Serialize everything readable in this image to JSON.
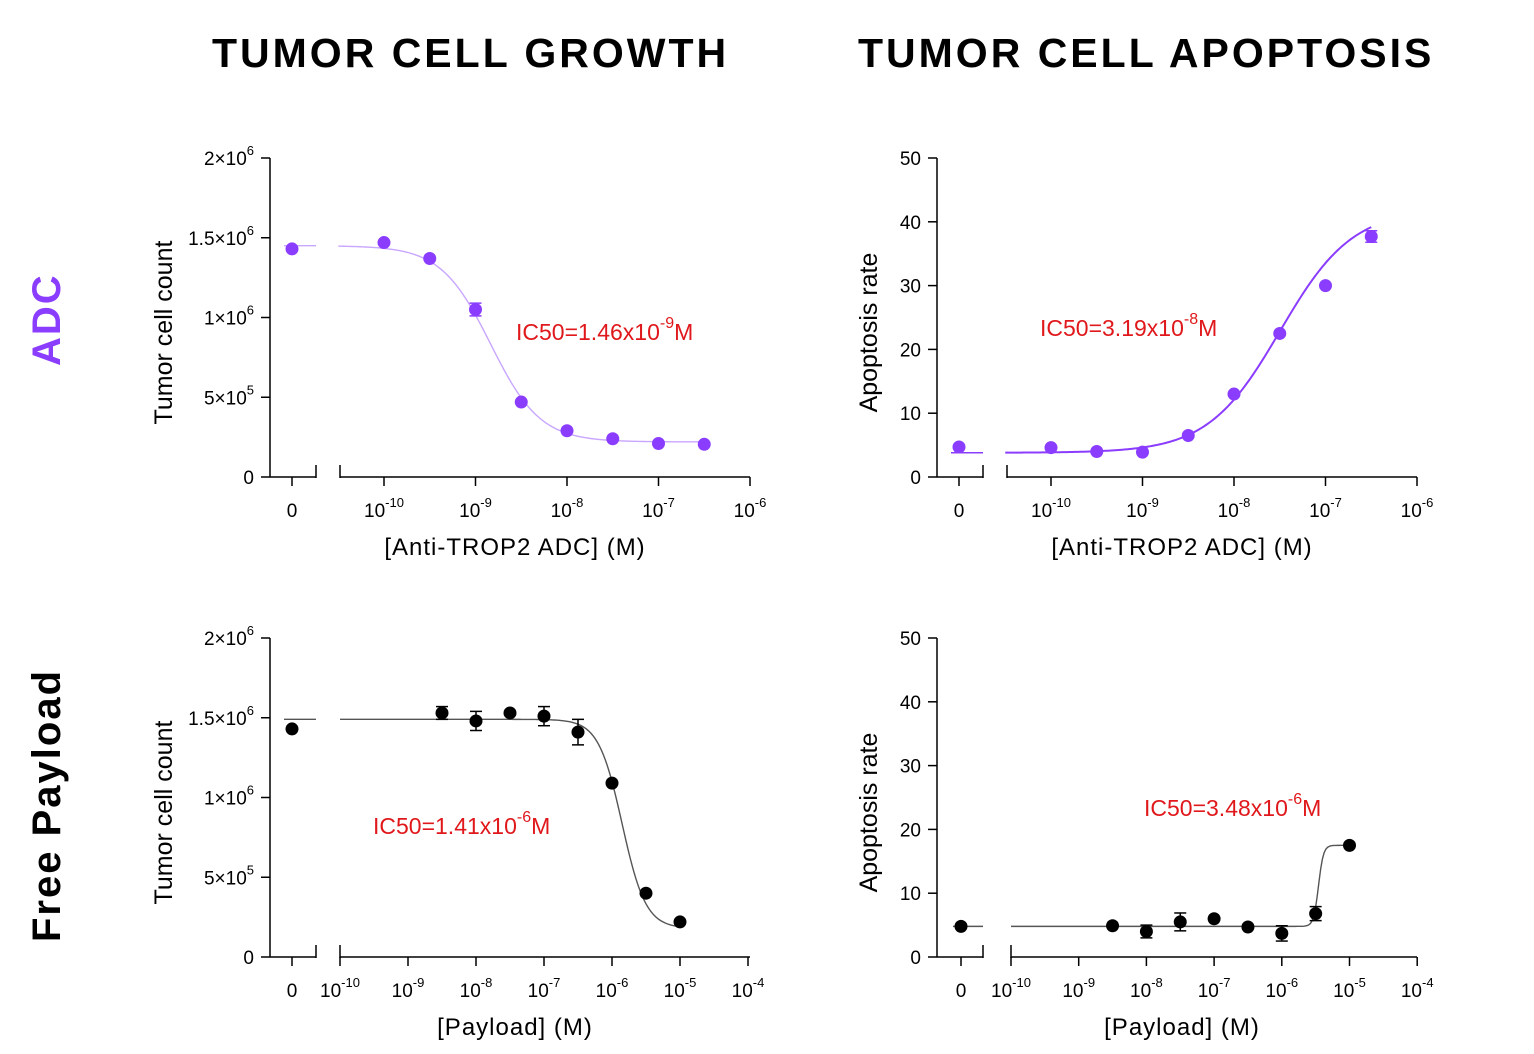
{
  "column_titles": [
    "TUMOR CELL GROWTH",
    "TUMOR CELL APOPTOSIS"
  ],
  "row_labels": [
    {
      "text": "ADC",
      "color": "#8b3dff"
    },
    {
      "text": "Free Payload",
      "color": "#000000"
    }
  ],
  "colors": {
    "adc": "#8b3dff",
    "payload": "#000000",
    "ic50": "#e0181b",
    "axis": "#000000"
  },
  "chart_data": [
    {
      "type": "scatter",
      "panel": "ADC growth",
      "ylabel": "Tumor cell count",
      "xlabel": "[Anti-TROP2 ADC] (M)",
      "ylim": [
        0,
        2000000
      ],
      "y_ticks": [
        {
          "value": 0,
          "base": "0",
          "exp": ""
        },
        {
          "value": 500000,
          "base": "5×10",
          "exp": "5"
        },
        {
          "value": 1000000,
          "base": "1×10",
          "exp": "6"
        },
        {
          "value": 1500000,
          "base": "1.5×10",
          "exp": "6"
        },
        {
          "value": 2000000,
          "base": "2×10",
          "exp": "6"
        }
      ],
      "xlim_log": [
        -10.5,
        -6
      ],
      "x_ticks": [
        -10,
        -9,
        -8,
        -7,
        -6
      ],
      "zero_label": "0",
      "color_key": "adc",
      "zero_point": {
        "y": 1430000,
        "err": 0
      },
      "points": [
        {
          "log_x": -10,
          "y": 1470000,
          "err": 0
        },
        {
          "log_x": -9.5,
          "y": 1370000,
          "err": 0
        },
        {
          "log_x": -9,
          "y": 1050000,
          "err": 40000
        },
        {
          "log_x": -8.5,
          "y": 470000,
          "err": 0
        },
        {
          "log_x": -8,
          "y": 290000,
          "err": 0
        },
        {
          "log_x": -7.5,
          "y": 240000,
          "err": 0
        },
        {
          "log_x": -7,
          "y": 210000,
          "err": 0
        },
        {
          "log_x": -6.5,
          "y": 205000,
          "err": 0
        }
      ],
      "fit": {
        "bottom": 220000,
        "top": 1450000,
        "log_ic50": -8.836,
        "hill": -1.6,
        "from": -10.5,
        "to": -6.5
      },
      "ic50": {
        "text": "IC50=1.46x10",
        "exp": "-9",
        "unit": "M"
      }
    },
    {
      "type": "scatter",
      "panel": "ADC apoptosis",
      "ylabel": "Apoptosis rate",
      "xlabel": "[Anti-TROP2 ADC] (M)",
      "ylim": [
        0,
        50
      ],
      "y_ticks": [
        {
          "value": 0,
          "base": "0",
          "exp": ""
        },
        {
          "value": 10,
          "base": "10",
          "exp": ""
        },
        {
          "value": 20,
          "base": "20",
          "exp": ""
        },
        {
          "value": 30,
          "base": "30",
          "exp": ""
        },
        {
          "value": 40,
          "base": "40",
          "exp": ""
        },
        {
          "value": 50,
          "base": "50",
          "exp": ""
        }
      ],
      "xlim_log": [
        -10.5,
        -6
      ],
      "x_ticks": [
        -10,
        -9,
        -8,
        -7,
        -6
      ],
      "zero_label": "0",
      "color_key": "adc",
      "zero_point": {
        "y": 4.7,
        "err": 0
      },
      "points": [
        {
          "log_x": -10,
          "y": 4.6,
          "err": 0
        },
        {
          "log_x": -9.5,
          "y": 4.0,
          "err": 0
        },
        {
          "log_x": -9,
          "y": 3.9,
          "err": 0
        },
        {
          "log_x": -8.5,
          "y": 6.5,
          "err": 0
        },
        {
          "log_x": -8,
          "y": 13.0,
          "err": 0
        },
        {
          "log_x": -7.5,
          "y": 22.5,
          "err": 0
        },
        {
          "log_x": -7,
          "y": 30.0,
          "err": 0
        },
        {
          "log_x": -6.5,
          "y": 37.7,
          "err": 0.9
        }
      ],
      "fit": {
        "bottom": 3.8,
        "top": 42.0,
        "log_ic50": -7.496,
        "hill": 1.1,
        "from": -10.5,
        "to": -6.5
      },
      "ic50": {
        "text": "IC50=3.19x10",
        "exp": "-8",
        "unit": "M"
      }
    },
    {
      "type": "scatter",
      "panel": "Payload growth",
      "ylabel": "Tumor cell count",
      "xlabel": "[Payload] (M)",
      "ylim": [
        0,
        2000000
      ],
      "y_ticks": [
        {
          "value": 0,
          "base": "0",
          "exp": ""
        },
        {
          "value": 500000,
          "base": "5×10",
          "exp": "5"
        },
        {
          "value": 1000000,
          "base": "1×10",
          "exp": "6"
        },
        {
          "value": 1500000,
          "base": "1.5×10",
          "exp": "6"
        },
        {
          "value": 2000000,
          "base": "2×10",
          "exp": "6"
        }
      ],
      "xlim_log": [
        -10,
        -4
      ],
      "x_ticks": [
        -10,
        -9,
        -8,
        -7,
        -6,
        -5,
        -4
      ],
      "zero_label": "0",
      "color_key": "payload",
      "zero_point": {
        "y": 1430000,
        "err": 0
      },
      "points": [
        {
          "log_x": -8.5,
          "y": 1530000,
          "err": 40000
        },
        {
          "log_x": -8,
          "y": 1480000,
          "err": 60000
        },
        {
          "log_x": -7.5,
          "y": 1530000,
          "err": 0
        },
        {
          "log_x": -7,
          "y": 1510000,
          "err": 60000
        },
        {
          "log_x": -6.5,
          "y": 1410000,
          "err": 80000
        },
        {
          "log_x": -6,
          "y": 1090000,
          "err": 0
        },
        {
          "log_x": -5.5,
          "y": 400000,
          "err": 0
        },
        {
          "log_x": -5,
          "y": 220000,
          "err": 0
        }
      ],
      "fit": {
        "bottom": 180000,
        "top": 1490000,
        "log_ic50": -5.851,
        "hill": -2.5,
        "from": -10,
        "to": -5
      },
      "ic50": {
        "text": "IC50=1.41x10",
        "exp": "-6",
        "unit": "M"
      }
    },
    {
      "type": "scatter",
      "panel": "Payload apoptosis",
      "ylabel": "Apoptosis rate",
      "xlabel": "[Payload] (M)",
      "ylim": [
        0,
        50
      ],
      "y_ticks": [
        {
          "value": 0,
          "base": "0",
          "exp": ""
        },
        {
          "value": 10,
          "base": "10",
          "exp": ""
        },
        {
          "value": 20,
          "base": "20",
          "exp": ""
        },
        {
          "value": 30,
          "base": "30",
          "exp": ""
        },
        {
          "value": 40,
          "base": "40",
          "exp": ""
        },
        {
          "value": 50,
          "base": "50",
          "exp": ""
        }
      ],
      "xlim_log": [
        -10,
        -4
      ],
      "x_ticks": [
        -10,
        -9,
        -8,
        -7,
        -6,
        -5,
        -4
      ],
      "zero_label": "0",
      "color_key": "payload",
      "zero_point": {
        "y": 4.8,
        "err": 0
      },
      "points": [
        {
          "log_x": -8.5,
          "y": 4.9,
          "err": 0
        },
        {
          "log_x": -8,
          "y": 4.0,
          "err": 1.0
        },
        {
          "log_x": -7.5,
          "y": 5.5,
          "err": 1.4
        },
        {
          "log_x": -7,
          "y": 6.0,
          "err": 0
        },
        {
          "log_x": -6.5,
          "y": 4.7,
          "err": 0
        },
        {
          "log_x": -6,
          "y": 3.7,
          "err": 1.2
        },
        {
          "log_x": -5.5,
          "y": 6.8,
          "err": 1.1
        },
        {
          "log_x": -5,
          "y": 17.5,
          "err": 0
        }
      ],
      "fit": {
        "bottom": 4.8,
        "top": 17.5,
        "log_ic50": -5.458,
        "hill": 12,
        "from": -10,
        "to": -5
      },
      "ic50": {
        "text": "IC50=3.48x10",
        "exp": "-6",
        "unit": "M"
      }
    }
  ]
}
